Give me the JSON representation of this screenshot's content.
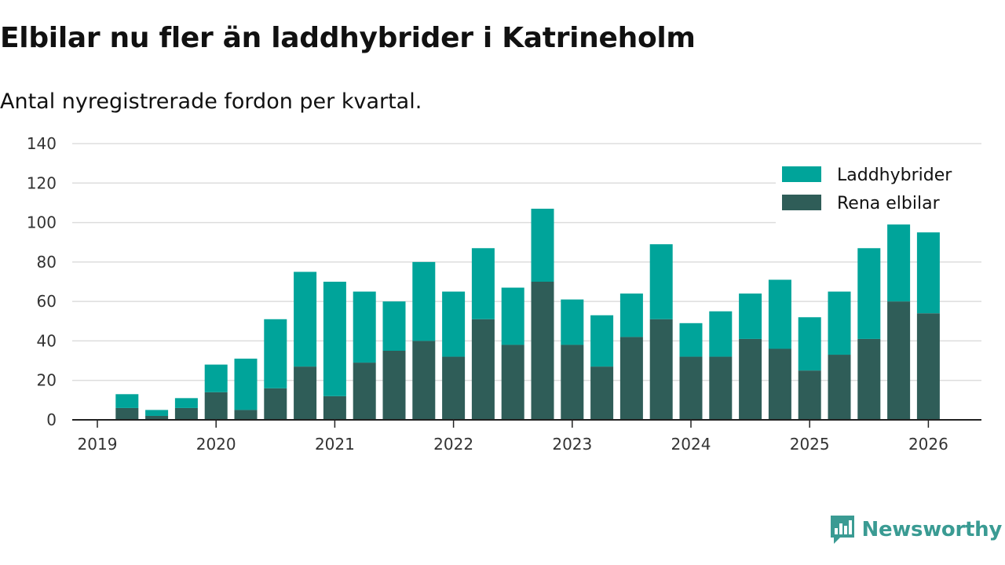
{
  "title": "Elbilar nu fler än laddhybrider i Katrineholm",
  "subtitle": "Antal nyregistrerade fordon per kvartal.",
  "brand": {
    "name": "Newsworthy",
    "color": "#3a9b93",
    "logo": "newsworthy-logo-icon"
  },
  "colors": {
    "laddhybrider": "#00a49a",
    "elbilar": "#2f5d58",
    "grid": "#dddddd",
    "axis": "#222222"
  },
  "chart_data": {
    "type": "bar",
    "stacked": true,
    "title": "Elbilar nu fler än laddhybrider i Katrineholm",
    "subtitle": "Antal nyregistrerade fordon per kvartal.",
    "xlabel": "",
    "ylabel": "",
    "ylim": [
      0,
      140
    ],
    "yticks": [
      0,
      20,
      40,
      60,
      80,
      100,
      120,
      140
    ],
    "grid": true,
    "legend_position": "top-right",
    "x_tick_labels": [
      "2019",
      "2020",
      "2021",
      "2022",
      "2023",
      "2024",
      "2025",
      "2026"
    ],
    "categories": [
      "2019 Q2",
      "2019 Q3",
      "2019 Q4",
      "2020 Q1",
      "2020 Q2",
      "2020 Q3",
      "2020 Q4",
      "2021 Q1",
      "2021 Q2",
      "2021 Q3",
      "2021 Q4",
      "2022 Q1",
      "2022 Q2",
      "2022 Q3",
      "2022 Q4",
      "2023 Q1",
      "2023 Q2",
      "2023 Q3",
      "2023 Q4",
      "2024 Q1",
      "2024 Q2",
      "2024 Q3",
      "2024 Q4",
      "2025 Q1",
      "2025 Q2",
      "2025 Q3",
      "2025 Q4",
      "2026 Q1"
    ],
    "series": [
      {
        "name": "Rena elbilar",
        "values": [
          6,
          2,
          6,
          14,
          5,
          16,
          27,
          12,
          29,
          35,
          40,
          32,
          51,
          38,
          70,
          38,
          27,
          42,
          51,
          32,
          32,
          41,
          36,
          25,
          33,
          41,
          60,
          54
        ]
      },
      {
        "name": "Laddhybrider",
        "values": [
          7,
          3,
          5,
          14,
          26,
          35,
          48,
          58,
          36,
          25,
          40,
          33,
          36,
          29,
          37,
          23,
          26,
          22,
          38,
          17,
          23,
          23,
          35,
          27,
          32,
          46,
          39,
          41
        ]
      }
    ]
  }
}
